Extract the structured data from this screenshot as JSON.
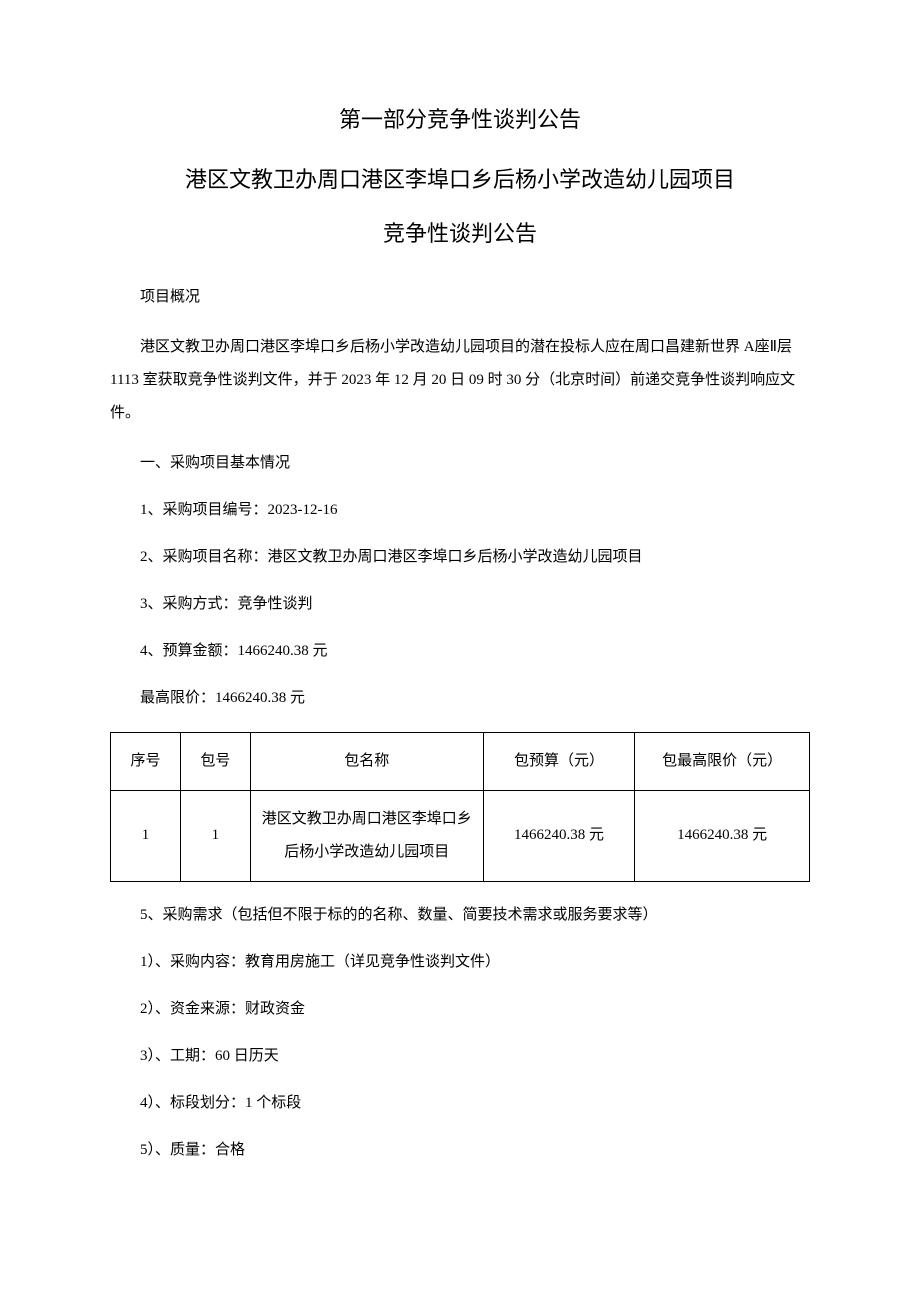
{
  "titles": {
    "main": "第一部分竞争性谈判公告",
    "sub": "港区文教卫办周口港区李埠口乡后杨小学改造幼儿园项目",
    "sub2": "竞争性谈判公告"
  },
  "overview_label": "项目概况",
  "overview_para": "港区文教卫办周口港区李埠口乡后杨小学改造幼儿园项目的潜在投标人应在周口昌建新世界 A座Ⅱ层 1113 室获取竞争性谈判文件，并于 2023 年 12 月 20 日 09 时 30 分（北京时间）前递交竞争性谈判响应文件。",
  "section1_title": "一、采购项目基本情况",
  "items": {
    "i1": "1、采购项目编号：2023-12-16",
    "i2": "2、采购项目名称：港区文教卫办周口港区李埠口乡后杨小学改造幼儿园项目",
    "i3": "3、采购方式：竞争性谈判",
    "i4": "4、预算金额：1466240.38 元",
    "i4b": "最高限价：1466240.38 元",
    "i5": "5、采购需求（包括但不限于标的的名称、数量、简要技术需求或服务要求等）",
    "i5_1": "1）、采购内容：教育用房施工（详见竞争性谈判文件）",
    "i5_2": "2）、资金来源：财政资金",
    "i5_3": "3）、工期：60 日历天",
    "i5_4": "4）、标段划分：1 个标段",
    "i5_5": "5）、质量：合格"
  },
  "table": {
    "headers": {
      "seq": "序号",
      "pkg": "包号",
      "name": "包名称",
      "budget": "包预算（元）",
      "max": "包最高限价（元）"
    },
    "row": {
      "seq": "1",
      "pkg": "1",
      "name": "港区文教卫办周口港区李埠口乡后杨小学改造幼儿园项目",
      "budget": "1466240.38 元",
      "max": "1466240.38 元"
    }
  }
}
